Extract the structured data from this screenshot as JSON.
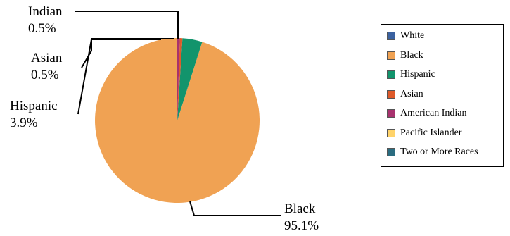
{
  "chart_data": {
    "type": "pie",
    "title": "",
    "slices": [
      {
        "name": "White",
        "value": 0.0,
        "color": "#3B62A0"
      },
      {
        "name": "Black",
        "value": 95.1,
        "color": "#F0A253"
      },
      {
        "name": "Hispanic",
        "value": 3.9,
        "color": "#12946C"
      },
      {
        "name": "Asian",
        "value": 0.5,
        "color": "#DE5A2A"
      },
      {
        "name": "American Indian",
        "value": 0.5,
        "color": "#A8326E"
      },
      {
        "name": "Pacific Islander",
        "value": 0.0,
        "color": "#FFD36A"
      },
      {
        "name": "Two or More Races",
        "value": 0.0,
        "color": "#2A6C80"
      }
    ],
    "callouts": [
      {
        "slice": "American Indian",
        "label": "Indian",
        "value_text": "0.5%"
      },
      {
        "slice": "Asian",
        "label": "Asian",
        "value_text": "0.5%"
      },
      {
        "slice": "Hispanic",
        "label": "Hispanic",
        "value_text": "3.9%"
      },
      {
        "slice": "Black",
        "label": "Black",
        "value_text": "95.1%"
      }
    ],
    "legend": {
      "position": "right",
      "items": [
        "White",
        "Black",
        "Hispanic",
        "Asian",
        "American Indian",
        "Pacific Islander",
        "Two or More Races"
      ]
    }
  }
}
